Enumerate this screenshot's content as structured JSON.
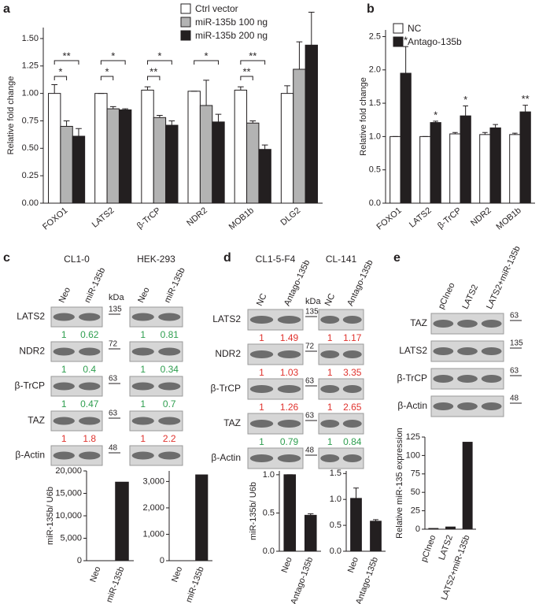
{
  "panel_labels": [
    "a",
    "b",
    "c",
    "d",
    "e"
  ],
  "chart_data": [
    {
      "type": "bar",
      "ylabel": "Relative fold change",
      "categories": [
        "FOXO1",
        "LATS2",
        "β-TrCP",
        "NDR2",
        "MOB1b",
        "DLG2"
      ],
      "series": [
        {
          "name": "Ctrl vector",
          "color": "#ffffff",
          "values": [
            1.0,
            1.0,
            1.03,
            1.02,
            1.03,
            1.0
          ],
          "errors": [
            0.08,
            0.0,
            0.03,
            0.0,
            0.03,
            0.07
          ]
        },
        {
          "name": "miR-135b 100 ng",
          "color": "#b3b3b3",
          "values": [
            0.7,
            0.86,
            0.78,
            0.89,
            0.73,
            1.22
          ],
          "errors": [
            0.05,
            0.02,
            0.02,
            0.23,
            0.02,
            0.25
          ]
        },
        {
          "name": "miR-135b 200 ng",
          "color": "#231f20",
          "values": [
            0.61,
            0.85,
            0.71,
            0.74,
            0.49,
            1.44
          ],
          "errors": [
            0.07,
            0.01,
            0.04,
            0.07,
            0.04,
            0.3
          ]
        }
      ],
      "significance": [
        [
          "*",
          "**"
        ],
        [
          "*",
          "*"
        ],
        [
          "**",
          "*"
        ],
        [
          null,
          "*"
        ],
        [
          "**",
          "**"
        ],
        [
          null,
          null
        ]
      ],
      "ylim": [
        0,
        1.6
      ],
      "yticks": [
        {
          "value": 0,
          "label": "0.00"
        },
        0.25,
        {
          "value": 0.5,
          "label": "0.50"
        },
        0.75,
        {
          "value": 1,
          "label": "1.00"
        },
        1.25,
        {
          "value": 1.5,
          "label": "1.50"
        }
      ],
      "legend": "top-right"
    },
    {
      "type": "bar",
      "ylabel": "Relative fold change",
      "categories": [
        "FOXO1",
        "LATS2",
        "β-TrCP",
        "NDR2",
        "MOB1b"
      ],
      "series": [
        {
          "name": "NC",
          "color": "#ffffff",
          "values": [
            1.0,
            1.0,
            1.04,
            1.03,
            1.03
          ],
          "errors": [
            0.0,
            0.0,
            0.02,
            0.03,
            0.02
          ]
        },
        {
          "name": "Antago-135b",
          "color": "#231f20",
          "values": [
            1.95,
            1.21,
            1.31,
            1.13,
            1.37
          ],
          "errors": [
            0.4,
            0.02,
            0.15,
            0.05,
            0.1
          ]
        }
      ],
      "significance": [
        "*",
        "*",
        "*",
        null,
        "**"
      ],
      "ylim": [
        0,
        2.6
      ],
      "yticks": [
        {
          "value": 0,
          "label": "0.0"
        },
        0.5,
        {
          "value": 1,
          "label": "1.0"
        },
        1.5,
        {
          "value": 2,
          "label": "2.0"
        },
        2.5
      ],
      "legend": "top-left"
    },
    {
      "type": "bar",
      "ylabel": "miR-135b/ U6b",
      "categories": [
        "Neo",
        "miR-135b"
      ],
      "values": [
        0,
        17500
      ],
      "color": "#231f20",
      "ylim": [
        0,
        20000
      ],
      "yticks": [
        0,
        {
          "value": 5000,
          "label": "5,000"
        },
        {
          "value": 10000,
          "label": "10,000"
        },
        {
          "value": 15000,
          "label": "15,000"
        },
        {
          "value": 20000,
          "label": "20,000"
        }
      ]
    },
    {
      "type": "bar",
      "categories": [
        "Neo",
        "miR-135b"
      ],
      "values": [
        0,
        3250
      ],
      "color": "#231f20",
      "ylim": [
        0,
        3400
      ],
      "yticks": [
        0,
        {
          "value": 1000,
          "label": "1,000"
        },
        {
          "value": 2000,
          "label": "2,000"
        },
        {
          "value": 3000,
          "label": "3,000"
        }
      ]
    },
    {
      "type": "bar",
      "ylabel": "miR-135b/ U6b",
      "categories": [
        "Neo",
        "Antago-135b"
      ],
      "values": [
        1.0,
        0.47
      ],
      "errors": [
        0.0,
        0.02
      ],
      "color": "#231f20",
      "ylim": [
        0,
        1.05
      ],
      "yticks": [
        {
          "value": 0,
          "label": "0.0"
        },
        0.5,
        {
          "value": 1,
          "label": "1.0"
        }
      ]
    },
    {
      "type": "bar",
      "categories": [
        "Neo",
        "Antago-135b"
      ],
      "values": [
        1.02,
        0.58
      ],
      "errors": [
        0.2,
        0.03
      ],
      "color": "#231f20",
      "ylim": [
        0,
        1.55
      ],
      "yticks": [
        {
          "value": 0,
          "label": "0.0"
        },
        0.5,
        {
          "value": 1,
          "label": "1.0"
        },
        1.5
      ]
    },
    {
      "type": "bar",
      "ylabel": "Relative miR-135 expression",
      "categories": [
        "pCIneo",
        "LATS2",
        "LATS2+miR-135b"
      ],
      "values": [
        1,
        3,
        118
      ],
      "color": "#231f20",
      "ylim": [
        0,
        125
      ],
      "yticks": [
        0,
        25,
        50,
        75,
        100,
        125
      ]
    }
  ],
  "blots": {
    "c": {
      "kda": "kDa",
      "groups": [
        {
          "name": "CL1-0",
          "lanes": [
            "Neo",
            "miR-135b"
          ]
        },
        {
          "name": "HEK-293",
          "lanes": [
            "Neo",
            "miR-135b"
          ]
        }
      ],
      "rows": [
        {
          "protein": "LATS2",
          "marker": 135,
          "ratios": [
            [
              1,
              0.62
            ],
            [
              1,
              0.81
            ]
          ],
          "ratio_color": "#2e9e4f"
        },
        {
          "protein": "NDR2",
          "marker": 72,
          "ratios": [
            [
              1,
              0.4
            ],
            [
              1,
              0.34
            ]
          ],
          "ratio_color": "#2e9e4f"
        },
        {
          "protein": "β-TrCP",
          "marker": 63,
          "ratios": [
            [
              1,
              0.47
            ],
            [
              1,
              0.7
            ]
          ],
          "ratio_color": "#2e9e4f"
        },
        {
          "protein": "TAZ",
          "marker": 63,
          "ratios": [
            [
              1,
              1.8
            ],
            [
              1,
              2.2
            ]
          ],
          "ratio_color": "#e0322d"
        },
        {
          "protein": "β-Actin",
          "marker": 48
        }
      ]
    },
    "d": {
      "kda": "kDa",
      "groups": [
        {
          "name": "CL1-5-F4",
          "lanes": [
            "NC",
            "Antago-135b"
          ]
        },
        {
          "name": "CL-141",
          "lanes": [
            "NC",
            "Antago-135b"
          ]
        }
      ],
      "rows": [
        {
          "protein": "LATS2",
          "marker": 135,
          "ratios": [
            [
              1,
              1.49
            ],
            [
              1,
              1.17
            ]
          ],
          "ratio_color": "#e0322d"
        },
        {
          "protein": "NDR2",
          "marker": 72,
          "ratios": [
            [
              1,
              1.03
            ],
            [
              1,
              3.35
            ]
          ],
          "ratio_color": "#e0322d"
        },
        {
          "protein": "β-TrCP",
          "marker": 63,
          "ratios": [
            [
              1,
              1.26
            ],
            [
              1,
              2.65
            ]
          ],
          "ratio_color": "#e0322d"
        },
        {
          "protein": "TAZ",
          "marker": 63,
          "ratios": [
            [
              1,
              0.79
            ],
            [
              1,
              0.84
            ]
          ],
          "ratio_color": "#2e9e4f"
        },
        {
          "protein": "β-Actin",
          "marker": 48
        }
      ]
    },
    "e": {
      "groups": [
        {
          "lanes": [
            "pCIneo",
            "LATS2",
            "LATS2+miR-135b"
          ]
        }
      ],
      "rows": [
        {
          "protein": "TAZ",
          "marker": 63
        },
        {
          "protein": "LATS2",
          "marker": 135
        },
        {
          "protein": "β-TrCP",
          "marker": 63
        },
        {
          "protein": "β-Actin",
          "marker": 48
        }
      ]
    }
  }
}
